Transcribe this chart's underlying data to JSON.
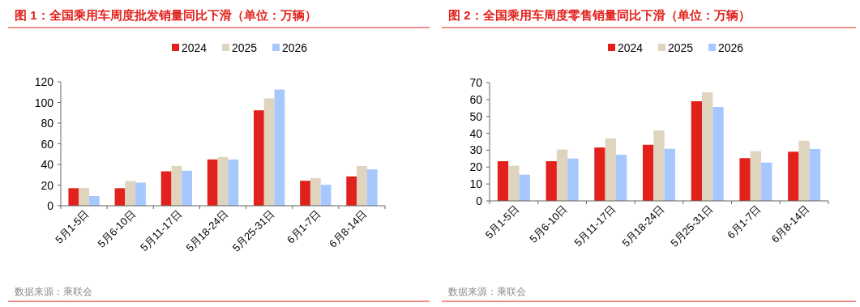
{
  "chart_data": [
    {
      "type": "bar",
      "title": "图 1：全国乘用车周度批发销量同比下滑（单位：万辆）",
      "categories": [
        "5月1-5日",
        "5月6-10日",
        "5月11-17日",
        "5月18-24日",
        "5月25-31日",
        "6月1-7日",
        "6月8-14日"
      ],
      "series": [
        {
          "name": "2024",
          "color": "#e2211c",
          "values": [
            17,
            17,
            33.3,
            44.8,
            92.4,
            24.2,
            28.4
          ]
        },
        {
          "name": "2025",
          "color": "#dfd4bd",
          "values": [
            17.2,
            24,
            38.5,
            47.1,
            104,
            26.8,
            38.5
          ]
        },
        {
          "name": "2026",
          "color": "#a6c8ff",
          "values": [
            9.4,
            22.4,
            33.9,
            44.8,
            112.5,
            20.3,
            35.2
          ]
        }
      ],
      "ylim": [
        0,
        120
      ],
      "yticks": [
        0,
        20,
        40,
        60,
        80,
        100,
        120
      ],
      "grid": false,
      "legend": "top",
      "annotations": [
        "数据来源：乘联会"
      ]
    },
    {
      "type": "bar",
      "title": "图 2：全国乘用车周度零售销量同比下滑（单位：万辆）",
      "categories": [
        "5月1-5日",
        "5月6-10日",
        "5月11-17日",
        "5月18-24日",
        "5月25-31日",
        "6月1-7日",
        "6月8-14日"
      ],
      "series": [
        {
          "name": "2024",
          "color": "#e2211c",
          "values": [
            23.5,
            23.5,
            31.6,
            33.2,
            59,
            25.3,
            29.1
          ]
        },
        {
          "name": "2025",
          "color": "#dfd4bd",
          "values": [
            20.8,
            30.4,
            36.9,
            41.7,
            64.2,
            29.4,
            35.6
          ]
        },
        {
          "name": "2026",
          "color": "#a6c8ff",
          "values": [
            15.5,
            25.1,
            27.3,
            30.8,
            55.6,
            22.7,
            30.7
          ]
        }
      ],
      "ylim": [
        0,
        70
      ],
      "yticks": [
        0,
        10,
        20,
        30,
        40,
        50,
        60,
        70
      ],
      "grid": false,
      "legend": "top",
      "annotations": [
        "数据来源：乘联会"
      ]
    }
  ]
}
